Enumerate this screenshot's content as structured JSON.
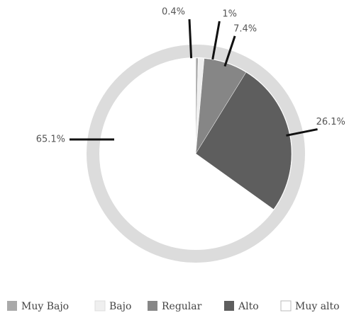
{
  "chart_data": {
    "type": "pie",
    "categories": [
      "Muy Bajo",
      "Bajo",
      "Regular",
      "Alto",
      "Muy alto"
    ],
    "values": [
      0.4,
      1,
      7.4,
      26.1,
      65.1
    ],
    "value_labels": [
      "0.4%",
      "1%",
      "7.4%",
      "26.1%",
      "65.1%"
    ],
    "colors": [
      "#a9a9a9",
      "#efefef",
      "#868686",
      "#5e5e5e",
      "#ffffff"
    ],
    "legend": "bottom"
  }
}
